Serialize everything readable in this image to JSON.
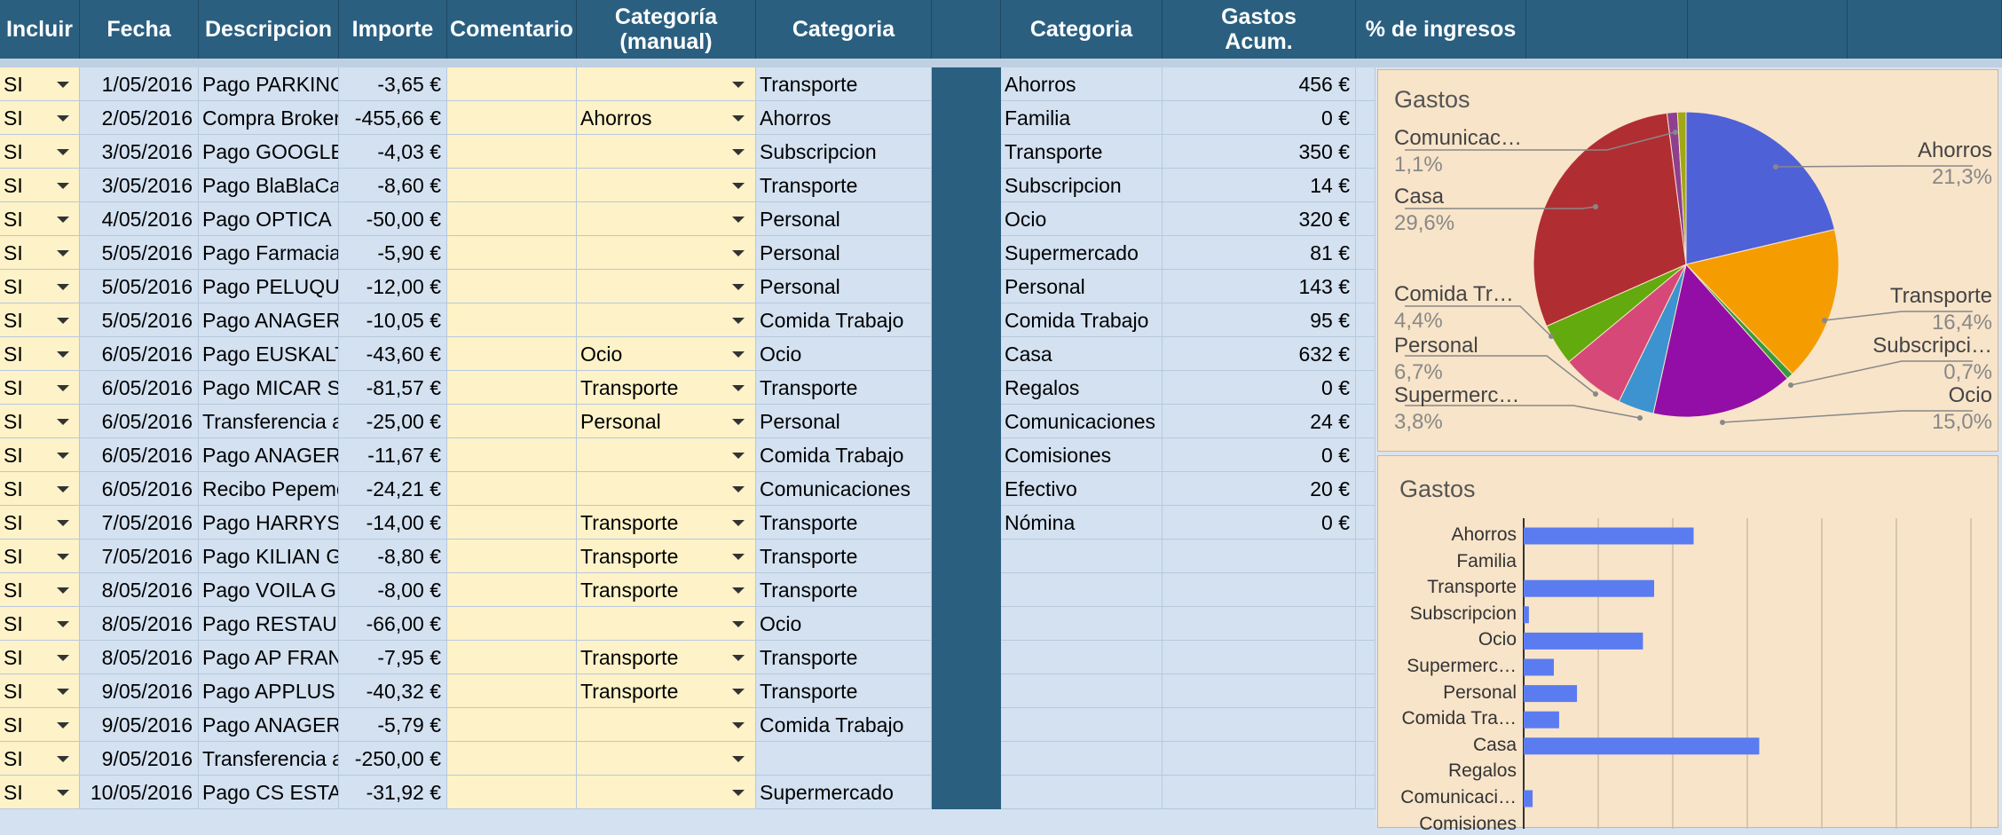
{
  "headers": {
    "incluir": "Incluir",
    "fecha": "Fecha",
    "descripcion": "Descripcion",
    "importe": "Importe",
    "comentario": "Comentario",
    "categoria_manual": "Categoría\n(manual)",
    "categoria": "Categoria",
    "categoria2": "Categoria",
    "gastos_acum": "Gastos\nAcum.",
    "pct_ingresos": "% de ingresos"
  },
  "transactions": [
    {
      "incluir": "SI",
      "fecha": "1/05/2016",
      "descripcion": "Pago PARKING",
      "importe": "-3,65 €",
      "manual": "",
      "categoria": "Transporte"
    },
    {
      "incluir": "SI",
      "fecha": "2/05/2016",
      "descripcion": "Compra Broker",
      "importe": "-455,66 €",
      "manual": "Ahorros",
      "categoria": "Ahorros"
    },
    {
      "incluir": "SI",
      "fecha": "3/05/2016",
      "descripcion": "Pago GOOGLE",
      "importe": "-4,03 €",
      "manual": "",
      "categoria": "Subscripcion"
    },
    {
      "incluir": "SI",
      "fecha": "3/05/2016",
      "descripcion": "Pago BlaBlaCar",
      "importe": "-8,60 €",
      "manual": "",
      "categoria": "Transporte"
    },
    {
      "incluir": "SI",
      "fecha": "4/05/2016",
      "descripcion": "Pago OPTICA",
      "importe": "-50,00 €",
      "manual": "",
      "categoria": "Personal"
    },
    {
      "incluir": "SI",
      "fecha": "5/05/2016",
      "descripcion": "Pago Farmacia",
      "importe": "-5,90 €",
      "manual": "",
      "categoria": "Personal"
    },
    {
      "incluir": "SI",
      "fecha": "5/05/2016",
      "descripcion": "Pago PELUQUERIA",
      "importe": "-12,00 €",
      "manual": "",
      "categoria": "Personal"
    },
    {
      "incluir": "SI",
      "fecha": "5/05/2016",
      "descripcion": "Pago ANAGER",
      "importe": "-10,05 €",
      "manual": "",
      "categoria": "Comida Trabajo"
    },
    {
      "incluir": "SI",
      "fecha": "6/05/2016",
      "descripcion": "Pago EUSKALTEL",
      "importe": "-43,60 €",
      "manual": "Ocio",
      "categoria": "Ocio"
    },
    {
      "incluir": "SI",
      "fecha": "6/05/2016",
      "descripcion": "Pago MICAR S",
      "importe": "-81,57 €",
      "manual": "Transporte",
      "categoria": "Transporte"
    },
    {
      "incluir": "SI",
      "fecha": "6/05/2016",
      "descripcion": "Transferencia a",
      "importe": "-25,00 €",
      "manual": "Personal",
      "categoria": "Personal"
    },
    {
      "incluir": "SI",
      "fecha": "6/05/2016",
      "descripcion": "Pago ANAGER",
      "importe": "-11,67 €",
      "manual": "",
      "categoria": "Comida Trabajo"
    },
    {
      "incluir": "SI",
      "fecha": "6/05/2016",
      "descripcion": "Recibo Pepemobile",
      "importe": "-24,21 €",
      "manual": "",
      "categoria": "Comunicaciones"
    },
    {
      "incluir": "SI",
      "fecha": "7/05/2016",
      "descripcion": "Pago HARRYS",
      "importe": "-14,00 €",
      "manual": "Transporte",
      "categoria": "Transporte"
    },
    {
      "incluir": "SI",
      "fecha": "7/05/2016",
      "descripcion": "Pago KILIAN G",
      "importe": "-8,80 €",
      "manual": "Transporte",
      "categoria": "Transporte"
    },
    {
      "incluir": "SI",
      "fecha": "8/05/2016",
      "descripcion": "Pago VOILA G",
      "importe": "-8,00 €",
      "manual": "Transporte",
      "categoria": "Transporte"
    },
    {
      "incluir": "SI",
      "fecha": "8/05/2016",
      "descripcion": "Pago RESTAURANTE",
      "importe": "-66,00 €",
      "manual": "",
      "categoria": "Ocio"
    },
    {
      "incluir": "SI",
      "fecha": "8/05/2016",
      "descripcion": "Pago AP FRANCE",
      "importe": "-7,95 €",
      "manual": "Transporte",
      "categoria": "Transporte"
    },
    {
      "incluir": "SI",
      "fecha": "9/05/2016",
      "descripcion": "Pago APPLUS",
      "importe": "-40,32 €",
      "manual": "Transporte",
      "categoria": "Transporte"
    },
    {
      "incluir": "SI",
      "fecha": "9/05/2016",
      "descripcion": "Pago ANAGER",
      "importe": "-5,79 €",
      "manual": "",
      "categoria": "Comida Trabajo"
    },
    {
      "incluir": "SI",
      "fecha": "9/05/2016",
      "descripcion": "Transferencia a",
      "importe": "-250,00 €",
      "manual": "",
      "categoria": ""
    },
    {
      "incluir": "SI",
      "fecha": "10/05/2016",
      "descripcion": "Pago CS ESTACION",
      "importe": "-31,92 €",
      "manual": "",
      "categoria": "Supermercado"
    }
  ],
  "summary": [
    {
      "categoria": "Ahorros",
      "gastos": "456 €"
    },
    {
      "categoria": "Familia",
      "gastos": "0 €"
    },
    {
      "categoria": "Transporte",
      "gastos": "350 €"
    },
    {
      "categoria": "Subscripcion",
      "gastos": "14 €"
    },
    {
      "categoria": "Ocio",
      "gastos": "320 €"
    },
    {
      "categoria": "Supermercado",
      "gastos": "81 €"
    },
    {
      "categoria": "Personal",
      "gastos": "143 €"
    },
    {
      "categoria": "Comida Trabajo",
      "gastos": "95 €"
    },
    {
      "categoria": "Casa",
      "gastos": "632 €"
    },
    {
      "categoria": "Regalos",
      "gastos": "0 €"
    },
    {
      "categoria": "Comunicaciones",
      "gastos": "24 €"
    },
    {
      "categoria": "Comisiones",
      "gastos": "0 €"
    },
    {
      "categoria": "Efectivo",
      "gastos": "20 €"
    },
    {
      "categoria": "Nómina",
      "gastos": "0 €"
    }
  ],
  "chart_data": [
    {
      "type": "pie",
      "title": "Gastos",
      "slices": [
        {
          "label": "Ahorros",
          "pct_label": "21,3%",
          "value": 21.3,
          "color": "#4f61d6"
        },
        {
          "label": "Transporte",
          "pct_label": "16,4%",
          "value": 16.4,
          "color": "#f59d00"
        },
        {
          "label": "Subscripci…",
          "pct_label": "0,7%",
          "value": 0.7,
          "color": "#3a9a3a"
        },
        {
          "label": "Ocio",
          "pct_label": "15,0%",
          "value": 15.0,
          "color": "#930ea6"
        },
        {
          "label": "Supermerc…",
          "pct_label": "3,8%",
          "value": 3.8,
          "color": "#3d93cf"
        },
        {
          "label": "Personal",
          "pct_label": "6,7%",
          "value": 6.7,
          "color": "#d64878"
        },
        {
          "label": "Comida Tr…",
          "pct_label": "4,4%",
          "value": 4.4,
          "color": "#63aa0e"
        },
        {
          "label": "Casa",
          "pct_label": "29,6%",
          "value": 29.6,
          "color": "#b02e32"
        },
        {
          "label": "Comunicac…",
          "pct_label": "1,1%",
          "value": 1.1,
          "color": "#8e3f8f"
        },
        {
          "label": "",
          "pct_label": "",
          "value": 0.9,
          "color": "#a1a813"
        }
      ]
    },
    {
      "type": "bar",
      "title": "Gastos",
      "orientation": "horizontal",
      "categories": [
        "Ahorros",
        "Familia",
        "Transporte",
        "Subscripcion",
        "Ocio",
        "Supermerc…",
        "Personal",
        "Comida Tra…",
        "Casa",
        "Regalos",
        "Comunicaci…",
        "Comisiones"
      ],
      "values": [
        456,
        0,
        350,
        14,
        320,
        81,
        143,
        95,
        632,
        0,
        24,
        0
      ],
      "color": "#5b7cf0",
      "xlim": [
        0,
        1200
      ]
    }
  ]
}
